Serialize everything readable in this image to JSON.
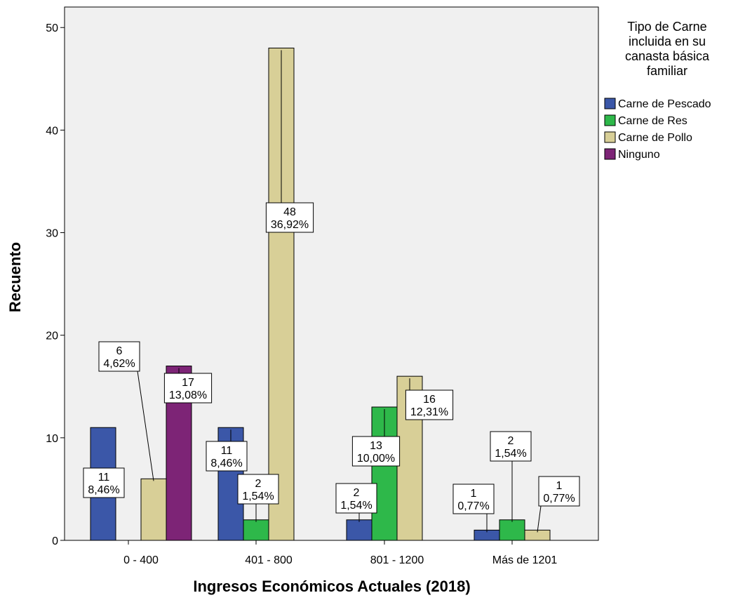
{
  "colors": {
    "plot_background": "#f0f0f0",
    "series": [
      "#3b57a8",
      "#2eb84a",
      "#d8cf97",
      "#7d2476"
    ]
  },
  "chart_data": {
    "type": "bar",
    "xlabel": "Ingresos Económicos Actuales (2018)",
    "ylabel": "Recuento",
    "ylim": [
      0,
      52
    ],
    "yticks": [
      0,
      10,
      20,
      30,
      40,
      50
    ],
    "categories": [
      "0 - 400",
      "401 - 800",
      "801 - 1200",
      "Más de 1201"
    ],
    "legend": {
      "title_lines": [
        "Tipo de Carne",
        "incluida en su",
        "canasta básica",
        "familiar"
      ],
      "position": "right"
    },
    "series": [
      {
        "name": "Carne de Pescado",
        "values": [
          11,
          11,
          2,
          1
        ],
        "labels": [
          [
            "11",
            "8,46%"
          ],
          [
            "11",
            "8,46%"
          ],
          [
            "2",
            "1,54%"
          ],
          [
            "1",
            "0,77%"
          ]
        ]
      },
      {
        "name": "Carne de Res",
        "values": [
          null,
          2,
          13,
          2
        ],
        "labels": [
          null,
          [
            "2",
            "1,54%"
          ],
          [
            "13",
            "10,00%"
          ],
          [
            "2",
            "1,54%"
          ]
        ]
      },
      {
        "name": "Carne de Pollo",
        "values": [
          6,
          48,
          16,
          1
        ],
        "labels": [
          [
            "6",
            "4,62%"
          ],
          [
            "48",
            "36,92%"
          ],
          [
            "16",
            "12,31%"
          ],
          [
            "1",
            "0,77%"
          ]
        ]
      },
      {
        "name": "Ninguno",
        "values": [
          17,
          null,
          null,
          null
        ],
        "labels": [
          [
            "17",
            "13,08%"
          ],
          null,
          null,
          null
        ]
      }
    ]
  }
}
